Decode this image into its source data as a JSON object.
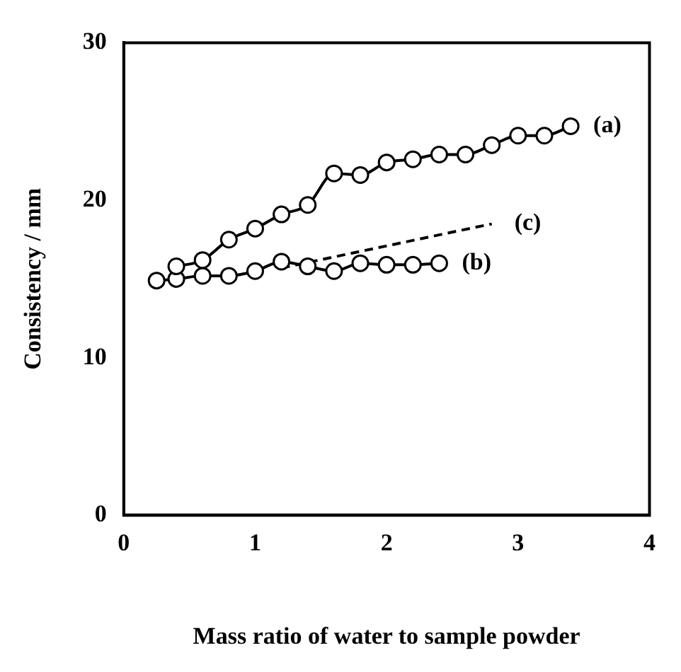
{
  "chart_data": {
    "type": "line",
    "xlabel": "Mass ratio of water to sample powder",
    "ylabel": "Consistency / mm",
    "xlim": [
      0,
      4
    ],
    "xticks": [
      0,
      1,
      2,
      3,
      4
    ],
    "ylim": [
      0,
      30
    ],
    "yticks": [
      0,
      10,
      20,
      30
    ],
    "grid": false,
    "legend": false,
    "series": [
      {
        "name": "(a)",
        "color": "#000000",
        "marker": "circle",
        "line_style": "solid",
        "x": [
          0.4,
          0.6,
          0.8,
          1.0,
          1.2,
          1.4,
          1.6,
          1.8,
          2.0,
          2.2,
          2.4,
          2.6,
          2.8,
          3.0,
          3.2,
          3.4
        ],
        "values": [
          15.8,
          16.2,
          17.5,
          18.2,
          19.1,
          19.7,
          21.7,
          21.6,
          22.4,
          22.6,
          22.9,
          22.9,
          23.5,
          24.1,
          24.1,
          24.7
        ]
      },
      {
        "name": "(b)",
        "color": "#000000",
        "marker": "circle",
        "line_style": "solid",
        "x": [
          0.25,
          0.4,
          0.6,
          0.8,
          1.0,
          1.2,
          1.4,
          1.6,
          1.8,
          2.0,
          2.2,
          2.4
        ],
        "values": [
          14.9,
          15.0,
          15.2,
          15.2,
          15.5,
          16.1,
          15.8,
          15.5,
          16.0,
          15.9,
          15.9,
          16.0
        ]
      },
      {
        "name": "(c)",
        "color": "#000000",
        "marker": "none",
        "line_style": "dashed",
        "x": [
          1.2,
          2.8
        ],
        "values": [
          15.7,
          18.5
        ]
      }
    ]
  }
}
